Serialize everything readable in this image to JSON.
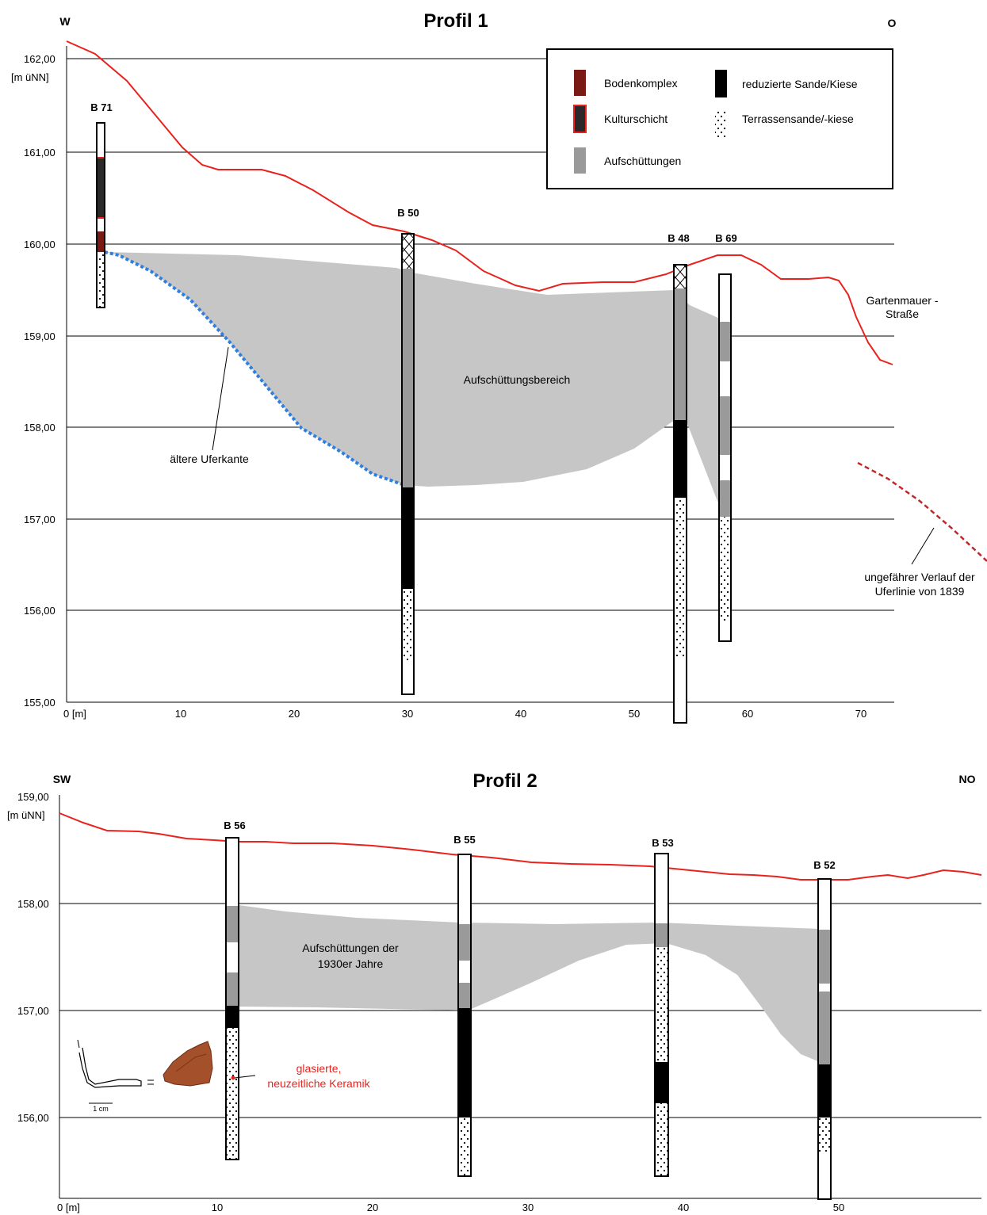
{
  "colors": {
    "surface_line": "#e8231e",
    "bodenkomplex": "#7a1a14",
    "kulturschicht_fill": "#2a2a2a",
    "kulturschicht_border": "#e8231e",
    "aufschuettungen": "#9a9a9a",
    "fill_area": "#c6c6c6",
    "reduzierte": "#000000",
    "uferkante": "#2f7fe0",
    "uferlinie_1839": "#c0282b"
  },
  "profile1": {
    "title": "Profil 1",
    "dir_left": "W",
    "dir_right": "O",
    "y_axis_unit": "[m üNN]",
    "y_ticks": [
      "162,00",
      "161,00",
      "160,00",
      "159,00",
      "158,00",
      "157,00",
      "156,00",
      "155,00"
    ],
    "x_ticks": [
      "0 [m]",
      "10",
      "20",
      "30",
      "40",
      "50",
      "60",
      "70"
    ],
    "legend": {
      "bodenkomplex": "Bodenkomplex",
      "kulturschicht": "Kulturschicht",
      "aufschuettungen": "Aufschüttungen",
      "reduzierte": "reduzierte Sande/Kiese",
      "terrassensande": "Terrassensande/-kiese"
    },
    "boreholes": {
      "b71": "B 71",
      "b50": "B 50",
      "b48": "B 48",
      "b69": "B 69"
    },
    "labels": {
      "area": "Aufschüttungsbereich",
      "uferkante": "ältere Uferkante",
      "garten_1": "Gartenmauer -",
      "garten_2": "Straße",
      "ufer_1": "ungefährer Verlauf der",
      "ufer_2": "Uferlinie von 1839"
    }
  },
  "profile2": {
    "title": "Profil 2",
    "dir_left": "SW",
    "dir_right": "NO",
    "y_axis_unit": "[m üNN]",
    "y_ticks": [
      "159,00",
      "158,00",
      "157,00",
      "156,00"
    ],
    "x_ticks": [
      "0 [m]",
      "10",
      "20",
      "30",
      "40",
      "50"
    ],
    "boreholes": {
      "b56": "B 56",
      "b55": "B 55",
      "b53": "B 53",
      "b52": "B 52"
    },
    "labels": {
      "area_1": "Aufschüttungen der",
      "area_2": "1930er Jahre",
      "keramik_1": "glasierte,",
      "keramik_2": "neuzeitliche Keramik",
      "scale": "1 cm"
    }
  }
}
